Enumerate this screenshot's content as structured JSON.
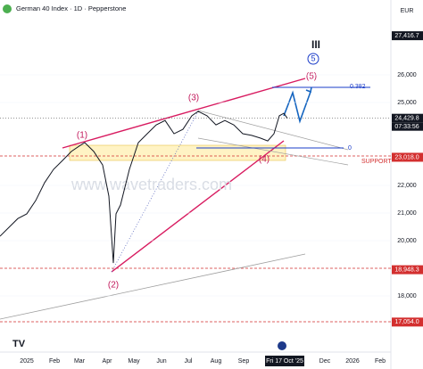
{
  "chart_data": {
    "type": "line",
    "title": "German 40 Index · 1D · Pepperstone",
    "currency": "EUR",
    "watermark": "www.wavetraders.com",
    "countdown": "07:33:56",
    "annotations": {
      "w1": "(1)",
      "w2": "(2)",
      "w3": "(3)",
      "w4": "(4)",
      "w5": "(5)",
      "degree": "III",
      "circled": "5",
      "fib382": "0.382",
      "fib0": "0",
      "support": "SUPPORT"
    },
    "series": [
      {
        "name": "German 40 Index",
        "color": "#131722",
        "x": [
          -30,
          -20,
          -10,
          0,
          10,
          20,
          30,
          40,
          50,
          60,
          65,
          75,
          85,
          92,
          97,
          100,
          105,
          115,
          125,
          135,
          145,
          155,
          165,
          175,
          185,
          192,
          202,
          212,
          222,
          232,
          242,
          252,
          262,
          270,
          277,
          283,
          288,
          292
        ],
        "values": [
          20160,
          20480,
          20800,
          20970,
          21450,
          22100,
          22580,
          22900,
          23230,
          23450,
          23550,
          23230,
          22740,
          21610,
          19190,
          20970,
          21290,
          22580,
          23550,
          23870,
          24190,
          24350,
          23870,
          24030,
          24520,
          24680,
          24520,
          24190,
          24350,
          24190,
          23870,
          23810,
          23710,
          23610,
          23870,
          24520,
          24610,
          24430
        ]
      }
    ],
    "xlim": [
      -30,
      408
    ],
    "xticks": [
      {
        "value": 0,
        "label": "2025"
      },
      {
        "value": 31,
        "label": "Feb"
      },
      {
        "value": 59,
        "label": "Mar"
      },
      {
        "value": 90,
        "label": "Apr"
      },
      {
        "value": 120,
        "label": "May"
      },
      {
        "value": 151,
        "label": "Jun"
      },
      {
        "value": 181,
        "label": "Jul"
      },
      {
        "value": 212,
        "label": "Aug"
      },
      {
        "value": 243,
        "label": "Sep"
      },
      {
        "value": 289,
        "label": "Fri 17 Oct '25"
      },
      {
        "value": 334,
        "label": "Dec"
      },
      {
        "value": 365,
        "label": "2026"
      },
      {
        "value": 396,
        "label": "Feb"
      }
    ],
    "ylim": [
      15968,
      28710
    ],
    "yticks": [
      {
        "value": 18000,
        "label": "18,000"
      },
      {
        "value": 20000,
        "label": "20,000"
      },
      {
        "value": 21000,
        "label": "21,000"
      },
      {
        "value": 22000,
        "label": "22,000"
      },
      {
        "value": 25000,
        "label": "25,000"
      },
      {
        "value": 26000,
        "label": "26,000"
      }
    ],
    "price_labels": [
      {
        "value": 27416.7,
        "label": "27,416.7",
        "color": "#131722"
      },
      {
        "value": 24429.8,
        "label": "24,429.8",
        "color": "#131722"
      },
      {
        "value": 23018.0,
        "label": "23,018.0",
        "color": "#d32f2f"
      },
      {
        "value": 18948.3,
        "label": "18,948.3",
        "color": "#d32f2f"
      },
      {
        "value": 17054.0,
        "label": "17,054.0",
        "color": "#d32f2f"
      }
    ]
  }
}
